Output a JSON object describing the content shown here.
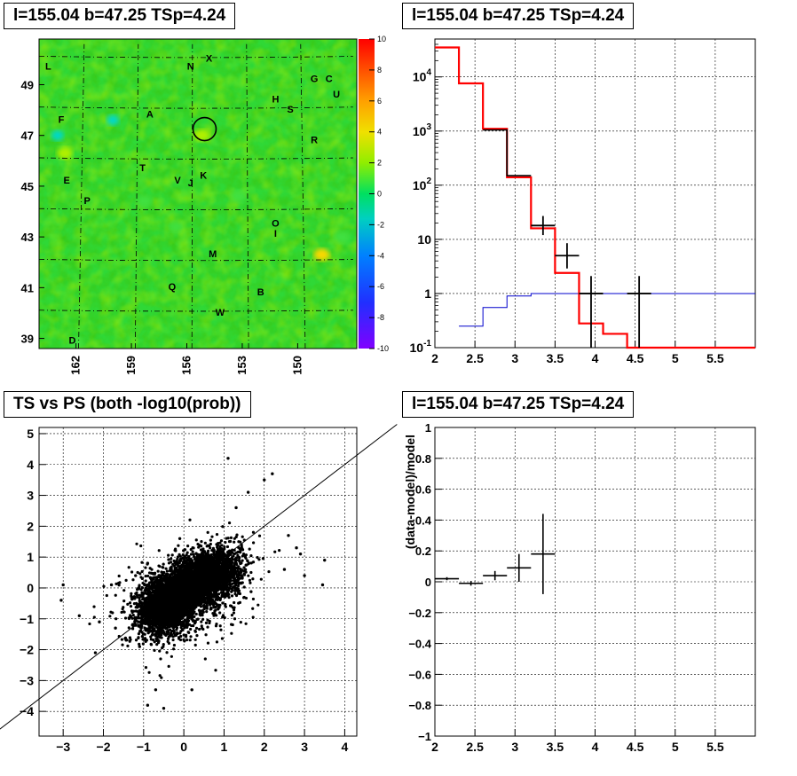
{
  "panels": {
    "map_title": "l=155.04 b=47.25 TSp=4.24",
    "spectrum_title": "l=155.04 b=47.25 TSp=4.24",
    "scatter_title": "TS vs PS (both -log10(prob))",
    "residual_title": "l=155.04 b=47.25 TSp=4.24"
  },
  "colors": {
    "data": "#000000",
    "model": "#ff0000",
    "third": "#0000cc",
    "grid": "#000000"
  },
  "chart_data": [
    {
      "type": "heatmap",
      "title": "l=155.04 b=47.25 TSp=4.24",
      "x_ticks": [
        "162",
        "159",
        "156",
        "153",
        "150"
      ],
      "y_ticks": [
        "39",
        "41",
        "43",
        "45",
        "47",
        "49"
      ],
      "colorbar_ticks": [
        "10",
        "8",
        "6",
        "4",
        "2",
        "0",
        "-2",
        "-4",
        "-6",
        "-8",
        "-10"
      ],
      "zlim": [
        -10,
        10
      ],
      "background_level": 0,
      "hotspots": [
        {
          "l": 155.2,
          "b": 47.0,
          "value": 3
        },
        {
          "l": 148.7,
          "b": 42.3,
          "value": 5
        },
        {
          "l": 158.3,
          "b": 44.4,
          "value": 2
        },
        {
          "l": 162.6,
          "b": 46.3,
          "value": 3
        },
        {
          "l": 153.2,
          "b": 44.6,
          "value": 2
        },
        {
          "l": 147.6,
          "b": 43.0,
          "value": 2
        },
        {
          "l": 162.0,
          "b": 38.8,
          "value": 2
        }
      ],
      "coldspots": [
        {
          "l": 160.0,
          "b": 47.6,
          "value": -4
        },
        {
          "l": 163.0,
          "b": 47.0,
          "value": -3
        },
        {
          "l": 156.6,
          "b": 43.4,
          "value": -2
        }
      ],
      "marker": {
        "l": 155.04,
        "b": 47.25,
        "label": "circle"
      },
      "labels": [
        {
          "t": "L",
          "l": 163.5,
          "b": 49.6
        },
        {
          "t": "N",
          "l": 155.8,
          "b": 49.6
        },
        {
          "t": "X",
          "l": 154.8,
          "b": 49.9
        },
        {
          "t": "G",
          "l": 149.1,
          "b": 49.1
        },
        {
          "t": "C",
          "l": 148.3,
          "b": 49.1
        },
        {
          "t": "U",
          "l": 147.9,
          "b": 48.5
        },
        {
          "t": "H",
          "l": 151.2,
          "b": 48.3
        },
        {
          "t": "S",
          "l": 150.4,
          "b": 47.9
        },
        {
          "t": "F",
          "l": 162.8,
          "b": 47.5
        },
        {
          "t": "A",
          "l": 158.0,
          "b": 47.7
        },
        {
          "t": "R",
          "l": 149.1,
          "b": 46.7
        },
        {
          "t": "T",
          "l": 158.4,
          "b": 45.6
        },
        {
          "t": "E",
          "l": 162.5,
          "b": 45.1
        },
        {
          "t": "V",
          "l": 156.5,
          "b": 45.1
        },
        {
          "t": "J",
          "l": 155.8,
          "b": 45.0
        },
        {
          "t": "K",
          "l": 155.1,
          "b": 45.3
        },
        {
          "t": "P",
          "l": 161.4,
          "b": 44.3
        },
        {
          "t": "O",
          "l": 151.2,
          "b": 43.4
        },
        {
          "t": "I",
          "l": 151.2,
          "b": 43.0
        },
        {
          "t": "M",
          "l": 154.6,
          "b": 42.2
        },
        {
          "t": "Q",
          "l": 156.8,
          "b": 40.9
        },
        {
          "t": "B",
          "l": 152.0,
          "b": 40.7
        },
        {
          "t": "W",
          "l": 154.2,
          "b": 39.9
        },
        {
          "t": "D",
          "l": 162.2,
          "b": 38.8
        }
      ]
    },
    {
      "type": "line",
      "title": "l=155.04 b=47.25 TSp=4.24",
      "x_ticks": [
        "2",
        "2.5",
        "3",
        "3.5",
        "4",
        "4.5",
        "5",
        "5.5"
      ],
      "y_ticks": [
        "10^-1",
        "1",
        "10",
        "10^2",
        "10^3",
        "10^4"
      ],
      "xlim": [
        2,
        6
      ],
      "ylim_log10": [
        -1,
        4.7
      ],
      "log_y": true,
      "model_hist": {
        "edges": [
          2.0,
          2.3,
          2.6,
          2.9,
          3.2,
          3.5,
          3.8,
          4.1,
          4.4,
          6.0
        ],
        "values": [
          35000,
          7600,
          1100,
          140,
          16,
          2.4,
          0.28,
          0.18,
          0.1
        ]
      },
      "data_hist": {
        "edges": [
          2.6,
          2.9,
          3.2
        ],
        "values": [
          1050,
          150
        ]
      },
      "third_hist": {
        "edges": [
          2.3,
          2.6,
          2.9,
          3.2,
          3.5,
          6.0
        ],
        "values": [
          0.25,
          0.55,
          0.9,
          1.0,
          1.0
        ]
      },
      "points": [
        {
          "x": 3.35,
          "xerr": 0.15,
          "y": 18,
          "ylo": 12,
          "yhi": 27
        },
        {
          "x": 3.65,
          "xerr": 0.15,
          "y": 5,
          "ylo": 2.9,
          "yhi": 8.5
        },
        {
          "x": 3.95,
          "xerr": 0.15,
          "y": 1.0,
          "ylo": 0.1,
          "yhi": 2.1
        },
        {
          "x": 4.55,
          "xerr": 0.15,
          "y": 1.0,
          "ylo": 0.1,
          "yhi": 2.1
        }
      ]
    },
    {
      "type": "scatter",
      "title": "TS vs PS (both -log10(prob))",
      "x_ticks": [
        "−3",
        "−2",
        "−1",
        "0",
        "1",
        "2",
        "3",
        "4"
      ],
      "y_ticks": [
        "−4",
        "−3",
        "−2",
        "−1",
        "0",
        "1",
        "2",
        "3",
        "4",
        "5"
      ],
      "xlim": [
        -3.6,
        4.3
      ],
      "ylim": [
        -4.8,
        5.2
      ],
      "reference_line": {
        "slope": 1,
        "intercept": 0
      },
      "clusters": [
        {
          "cx": -0.4,
          "cy": -0.5,
          "sx": 0.35,
          "sy": 0.45,
          "n": 2600
        },
        {
          "cx": 0.5,
          "cy": 0.3,
          "sx": 0.45,
          "sy": 0.4,
          "n": 2600
        },
        {
          "cx": 0.0,
          "cy": -0.2,
          "sx": 0.8,
          "sy": 0.8,
          "n": 700
        }
      ],
      "outliers": [
        {
          "x": -3.0,
          "y": 0.1
        },
        {
          "x": -3.05,
          "y": -0.4
        },
        {
          "x": -2.6,
          "y": -0.9
        },
        {
          "x": -2.2,
          "y": -2.1
        },
        {
          "x": -1.8,
          "y": 0.1
        },
        {
          "x": -1.2,
          "y": 0.4
        },
        {
          "x": -0.9,
          "y": -3.8
        },
        {
          "x": -0.5,
          "y": -3.9
        },
        {
          "x": -0.7,
          "y": -3.3
        },
        {
          "x": -0.9,
          "y": 0.8
        },
        {
          "x": 1.1,
          "y": 4.2
        },
        {
          "x": 2.0,
          "y": 3.5
        },
        {
          "x": 2.2,
          "y": 3.7
        },
        {
          "x": 3.5,
          "y": 0.9
        },
        {
          "x": 3.0,
          "y": 0.4
        },
        {
          "x": 2.8,
          "y": 1.3
        },
        {
          "x": 3.45,
          "y": 0.1
        },
        {
          "x": -1.1,
          "y": -1.9
        },
        {
          "x": -0.1,
          "y": 1.6
        },
        {
          "x": 2.9,
          "y": 1.1
        },
        {
          "x": 2.5,
          "y": 0.6
        },
        {
          "x": -2.1,
          "y": -1.1
        },
        {
          "x": 0.2,
          "y": -3.3
        },
        {
          "x": 1.3,
          "y": 2.6
        },
        {
          "x": 1.6,
          "y": 3.1
        },
        {
          "x": 2.6,
          "y": 1.7
        },
        {
          "x": -1.7,
          "y": -1.3
        }
      ]
    },
    {
      "type": "scatter",
      "title": "l=155.04 b=47.25 TSp=4.24",
      "ylabel": "(data-model)/model",
      "x_ticks": [
        "2",
        "2.5",
        "3",
        "3.5",
        "4",
        "4.5",
        "5",
        "5.5"
      ],
      "y_ticks": [
        "−1",
        "−0.8",
        "−0.6",
        "−0.4",
        "−0.2",
        "0",
        "0.2",
        "0.4",
        "0.6",
        "0.8",
        "1"
      ],
      "xlim": [
        2,
        6
      ],
      "ylim": [
        -1,
        1
      ],
      "points": [
        {
          "x": 2.15,
          "xerr": 0.15,
          "y": 0.02,
          "yerr": 0.01
        },
        {
          "x": 2.45,
          "xerr": 0.15,
          "y": -0.01,
          "yerr": 0.015
        },
        {
          "x": 2.75,
          "xerr": 0.15,
          "y": 0.04,
          "yerr": 0.03
        },
        {
          "x": 3.05,
          "xerr": 0.15,
          "y": 0.09,
          "yerr": 0.09
        },
        {
          "x": 3.35,
          "xerr": 0.15,
          "y": 0.18,
          "yerr": 0.26
        }
      ]
    }
  ]
}
